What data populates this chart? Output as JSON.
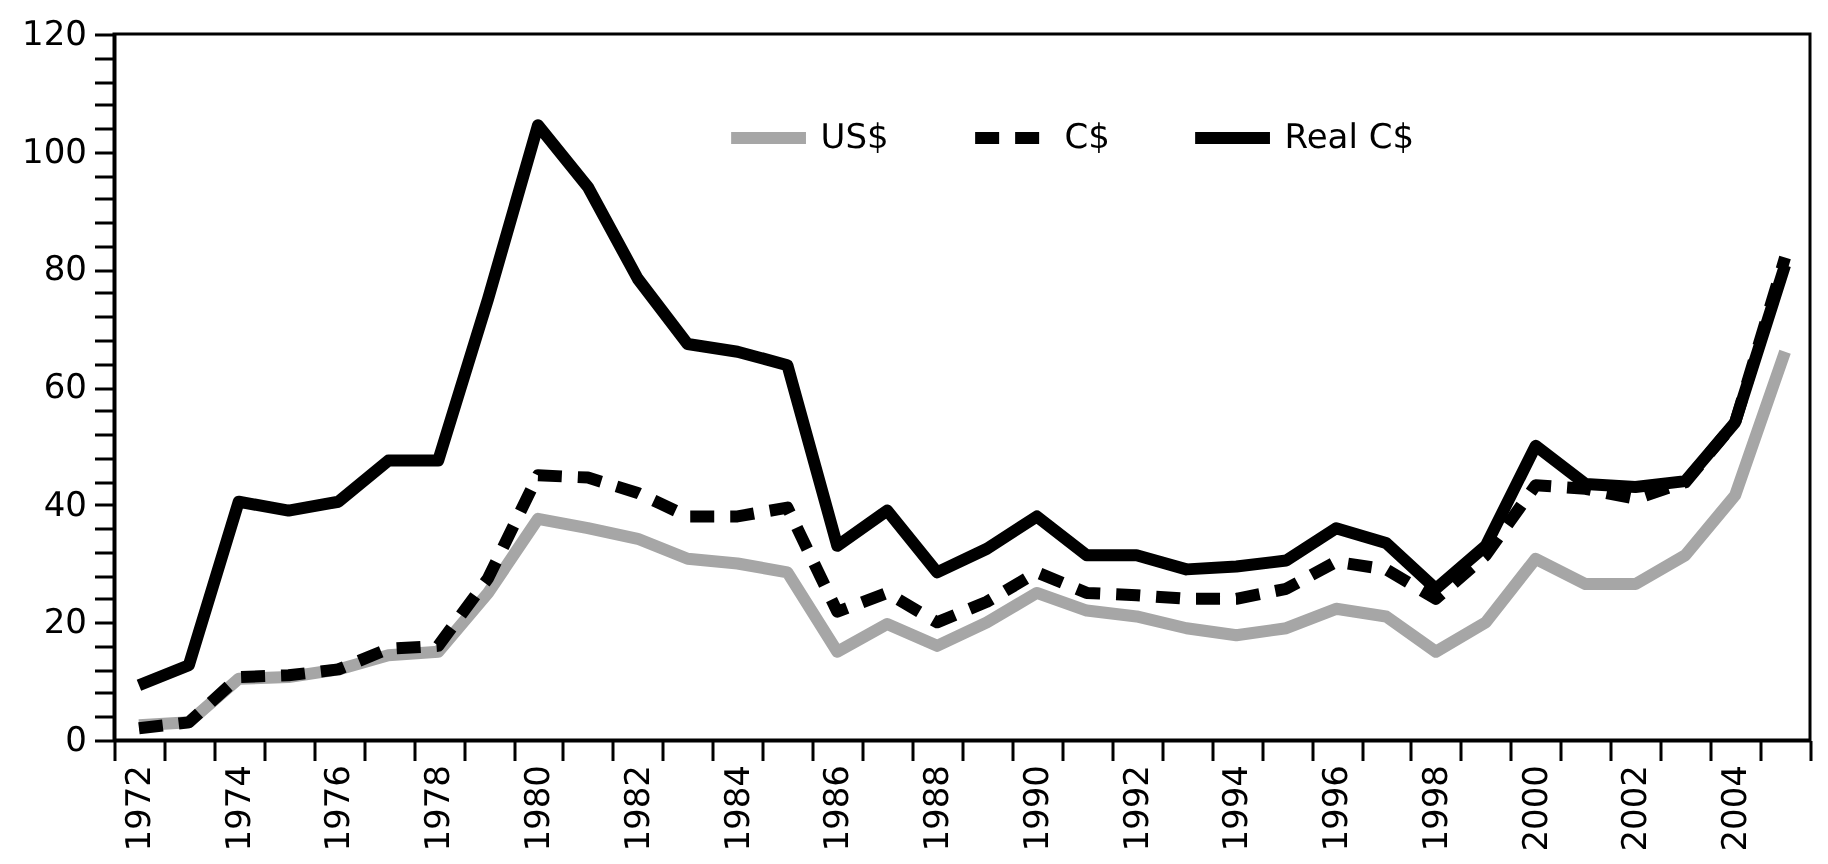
{
  "chart_data": {
    "type": "line",
    "categories": [
      "1972",
      null,
      "1974",
      null,
      "1976",
      null,
      "1978",
      null,
      "1980",
      null,
      "1982",
      null,
      "1984",
      null,
      "1986",
      null,
      "1988",
      null,
      "1990",
      null,
      "1992",
      null,
      "1994",
      null,
      "1996",
      null,
      "1998",
      null,
      "2000",
      null,
      "2002",
      null,
      "2004",
      null
    ],
    "ylim": [
      0,
      120
    ],
    "yticks": [
      0,
      {
        "value": 4,
        "label": null
      },
      {
        "value": 8,
        "label": null
      },
      {
        "value": 12,
        "label": null
      },
      {
        "value": 16,
        "label": null
      },
      20,
      {
        "value": 24,
        "label": null
      },
      {
        "value": 28,
        "label": null
      },
      {
        "value": 32,
        "label": null
      },
      {
        "value": 36,
        "label": null
      },
      40,
      {
        "value": 44,
        "label": null
      },
      {
        "value": 48,
        "label": null
      },
      {
        "value": 52,
        "label": null
      },
      {
        "value": 56,
        "label": null
      },
      60,
      {
        "value": 64,
        "label": null
      },
      {
        "value": 68,
        "label": null
      },
      {
        "value": 72,
        "label": null
      },
      {
        "value": 76,
        "label": null
      },
      80,
      {
        "value": 84,
        "label": null
      },
      {
        "value": 88,
        "label": null
      },
      {
        "value": 92,
        "label": null
      },
      {
        "value": 96,
        "label": null
      },
      100,
      {
        "value": 104,
        "label": null
      },
      {
        "value": 108,
        "label": null
      },
      {
        "value": 112,
        "label": null
      },
      {
        "value": 116,
        "label": null
      },
      120
    ],
    "grid": false,
    "legend": "top",
    "marker": "none",
    "series": [
      {
        "name": "US$",
        "color": "#a6a6a6",
        "line_style": "solid",
        "values": [
          2.5,
          3,
          10.4,
          10.7,
          12,
          14.4,
          15,
          25,
          37.6,
          36,
          34.2,
          30.8,
          30,
          28.5,
          15,
          19.7,
          16,
          20,
          25,
          22,
          21,
          19,
          17.8,
          19,
          22.3,
          21,
          15,
          20,
          30.8,
          26.5,
          26.5,
          31.4,
          41.6,
          66
        ]
      },
      {
        "name": "C$",
        "color": "#000000",
        "line_style": "dashed",
        "values": [
          2,
          3,
          10.7,
          11,
          12,
          15.5,
          16,
          27.5,
          45,
          44.6,
          42,
          38,
          38,
          39.5,
          21.8,
          25,
          20,
          23.5,
          28.5,
          25,
          24.6,
          24,
          24,
          25.7,
          30.3,
          29,
          24,
          31.4,
          43.3,
          42.7,
          41,
          43.8,
          54,
          82
        ]
      },
      {
        "name": "Real C$",
        "color": "#000000",
        "line_style": "solid",
        "values": [
          9.3,
          12.7,
          40.5,
          39,
          40.5,
          47.5,
          47.5,
          75,
          104.5,
          94,
          78.4,
          67.3,
          66,
          63.7,
          33,
          39,
          28.5,
          32.5,
          38,
          31.4,
          31.4,
          29,
          29.5,
          30.5,
          36,
          33.5,
          25.7,
          33,
          50,
          43.5,
          43,
          44,
          54,
          80.7
        ]
      }
    ]
  }
}
